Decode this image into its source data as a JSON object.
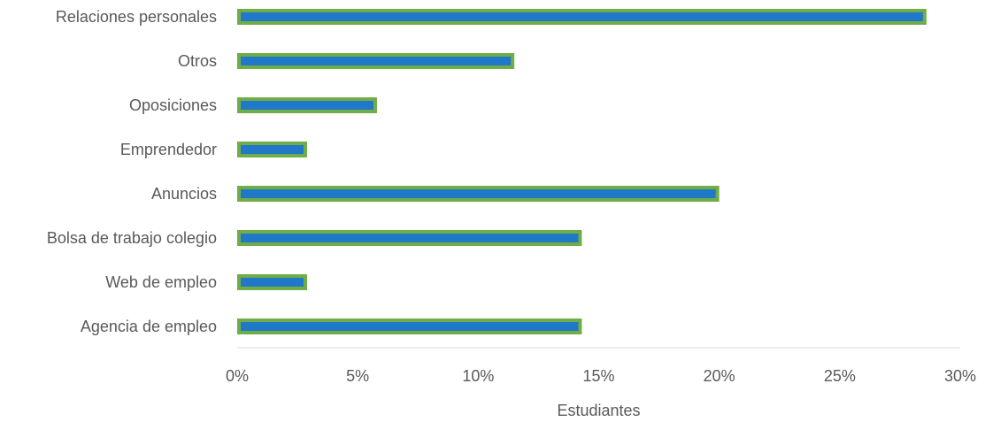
{
  "chart_data": {
    "type": "bar",
    "orientation": "horizontal",
    "categories": [
      "Relaciones personales",
      "Otros",
      "Oposiciones",
      "Emprendedor",
      "Anuncios",
      "Bolsa de trabajo colegio",
      "Web de empleo",
      "Agencia de empleo"
    ],
    "values": [
      28.6,
      11.5,
      5.8,
      2.9,
      20.0,
      14.3,
      2.9,
      14.3
    ],
    "title": "",
    "xlabel": "Estudiantes",
    "ylabel": "",
    "xlim": [
      0,
      30
    ],
    "x_ticks": [
      0,
      5,
      10,
      15,
      20,
      25,
      30
    ],
    "x_tick_labels": [
      "0%",
      "5%",
      "10%",
      "15%",
      "20%",
      "25%",
      "30%"
    ],
    "grid": false,
    "legend": "none",
    "colors": {
      "bar_fill": "#1f78c8",
      "bar_border": "#70ad47",
      "axis_line": "#d9d9d9",
      "text": "#595959"
    }
  }
}
